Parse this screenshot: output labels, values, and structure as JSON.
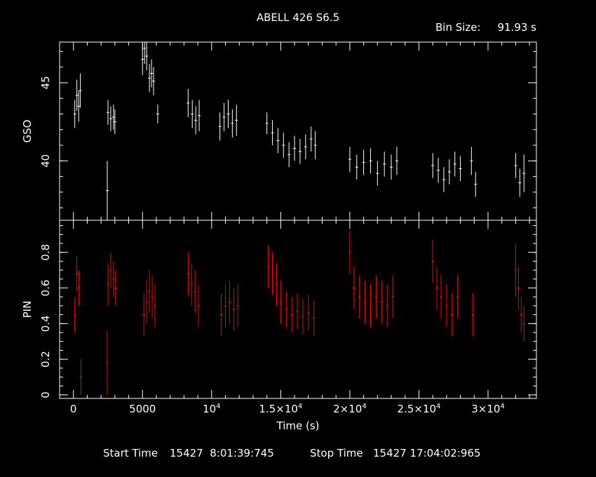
{
  "chart_data": [
    {
      "type": "scatter",
      "title": "ABELL 426 S6.5",
      "bin_label": "Bin Size:",
      "bin_value": "91.93 s",
      "ylabel": "GSO",
      "xlabel": "Time (s)",
      "xlim": [
        -1000,
        33500
      ],
      "ylim": [
        36.2,
        47.6
      ],
      "yticks_major": [
        40,
        45
      ],
      "yticks_major_labels": [
        "40",
        "45"
      ],
      "color": "#ffffff",
      "error_bars": true,
      "series": [
        {
          "x": [
            100,
            250,
            380,
            500,
            2500,
            2700,
            2900,
            3000,
            5000,
            5150,
            5300,
            5500,
            5650,
            5800,
            6100,
            8300,
            8600,
            8850,
            9100,
            10600,
            10900,
            11200,
            11500,
            11800,
            14000,
            14400,
            14800,
            15200,
            15600,
            16000,
            16400,
            16800,
            17200,
            17500,
            20000,
            20500,
            21000,
            21500,
            22000,
            22500,
            23000,
            23400,
            26000,
            26400,
            26800,
            27200,
            27600,
            28000,
            28800,
            29100,
            32000,
            32300,
            32600
          ],
          "y": [
            43.0,
            44.2,
            43.5,
            44.5,
            43.1,
            42.7,
            42.8,
            42.5,
            46.5,
            47.2,
            46.7,
            45.3,
            45.6,
            45.1,
            43.0,
            43.7,
            43.0,
            42.6,
            42.9,
            42.2,
            42.8,
            43.0,
            42.4,
            42.6,
            42.4,
            41.8,
            41.3,
            41.0,
            40.4,
            40.8,
            40.6,
            40.9,
            41.4,
            41.0,
            40.1,
            39.6,
            39.9,
            40.0,
            39.2,
            39.8,
            39.6,
            40.0,
            39.7,
            39.4,
            38.8,
            39.3,
            39.8,
            39.5,
            40.0,
            38.5,
            39.7,
            38.6,
            39.2
          ],
          "err": [
            0.9,
            1.0,
            1.0,
            1.1,
            0.8,
            0.8,
            0.8,
            0.8,
            1.0,
            1.0,
            0.9,
            0.9,
            0.9,
            0.9,
            0.6,
            0.9,
            0.9,
            0.9,
            1.0,
            0.9,
            0.9,
            0.9,
            0.9,
            1.0,
            0.7,
            0.8,
            0.8,
            0.8,
            0.8,
            0.8,
            0.8,
            0.8,
            0.8,
            0.9,
            0.8,
            0.8,
            0.8,
            0.8,
            0.8,
            0.8,
            0.8,
            0.9,
            0.8,
            0.8,
            0.8,
            0.8,
            0.8,
            0.8,
            0.9,
            0.8,
            0.8,
            0.9,
            1.2
          ]
        },
        {
          "x": [
            2450
          ],
          "y": [
            38.1
          ],
          "err": [
            1.9
          ]
        }
      ]
    },
    {
      "type": "scatter",
      "ylabel": "PIN",
      "xlabel": "Time (s)",
      "xlim": [
        -1000,
        33500
      ],
      "ylim": [
        -0.02,
        0.98
      ],
      "yticks_major": [
        0,
        0.2,
        0.4,
        0.6,
        0.8
      ],
      "yticks_major_labels": [
        "0",
        "0.2",
        "0.4",
        "0.6",
        "0.8"
      ],
      "xticks_major": [
        0,
        5000,
        10000,
        15000,
        20000,
        25000,
        30000
      ],
      "xtick_labels": [
        {
          "base": "0",
          "exp": ""
        },
        {
          "base": "5000",
          "exp": ""
        },
        {
          "base": "10",
          "exp": "4"
        },
        {
          "base": "1.5×10",
          "exp": "4"
        },
        {
          "base": "2×10",
          "exp": "4"
        },
        {
          "base": "2.5×10",
          "exp": "4"
        },
        {
          "base": "3×10",
          "exp": "4"
        }
      ],
      "color": "#ff0000",
      "error_bars": true,
      "series": [
        {
          "x": [
            100,
            250,
            400,
            550,
            2500,
            2700,
            2900,
            3050,
            5100,
            5300,
            5500,
            5700,
            5900,
            8300,
            8550,
            8800,
            9050,
            10700,
            11000,
            11300,
            11600,
            11900,
            14100,
            14400,
            14700,
            15000,
            15400,
            15800,
            16200,
            16600,
            17000,
            17400,
            20000,
            20300,
            20700,
            21100,
            21500,
            21900,
            22300,
            22700,
            23100,
            26000,
            26300,
            26600,
            27000,
            27400,
            27800,
            28900,
            32000,
            32200,
            32400,
            32600
          ],
          "y": [
            0.45,
            0.68,
            0.6,
            0.1,
            0.62,
            0.7,
            0.65,
            0.6,
            0.45,
            0.52,
            0.58,
            0.55,
            0.5,
            0.68,
            0.62,
            0.58,
            0.5,
            0.45,
            0.5,
            0.52,
            0.48,
            0.5,
            0.72,
            0.68,
            0.62,
            0.52,
            0.48,
            0.45,
            0.47,
            0.44,
            0.46,
            0.43,
            0.8,
            0.6,
            0.55,
            0.52,
            0.5,
            0.55,
            0.52,
            0.5,
            0.55,
            0.75,
            0.6,
            0.55,
            0.5,
            0.45,
            0.55,
            0.45,
            0.7,
            0.6,
            0.45,
            0.4
          ],
          "err": [
            0.1,
            0.1,
            0.1,
            0.1,
            0.12,
            0.1,
            0.1,
            0.1,
            0.12,
            0.12,
            0.12,
            0.12,
            0.12,
            0.12,
            0.12,
            0.12,
            0.12,
            0.12,
            0.12,
            0.12,
            0.12,
            0.12,
            0.12,
            0.12,
            0.12,
            0.12,
            0.1,
            0.1,
            0.1,
            0.1,
            0.1,
            0.1,
            0.12,
            0.12,
            0.12,
            0.12,
            0.12,
            0.12,
            0.12,
            0.12,
            0.12,
            0.12,
            0.12,
            0.12,
            0.12,
            0.12,
            0.12,
            0.12,
            0.15,
            0.12,
            0.1,
            0.1
          ]
        },
        {
          "x": [
            2450
          ],
          "y": [
            0.18
          ],
          "err": [
            0.18
          ]
        }
      ]
    }
  ],
  "footer": {
    "start_label": "Start Time",
    "start_value": "15427  8:01:39:745",
    "stop_label": "Stop Time",
    "stop_value": "15427 17:04:02:965"
  }
}
